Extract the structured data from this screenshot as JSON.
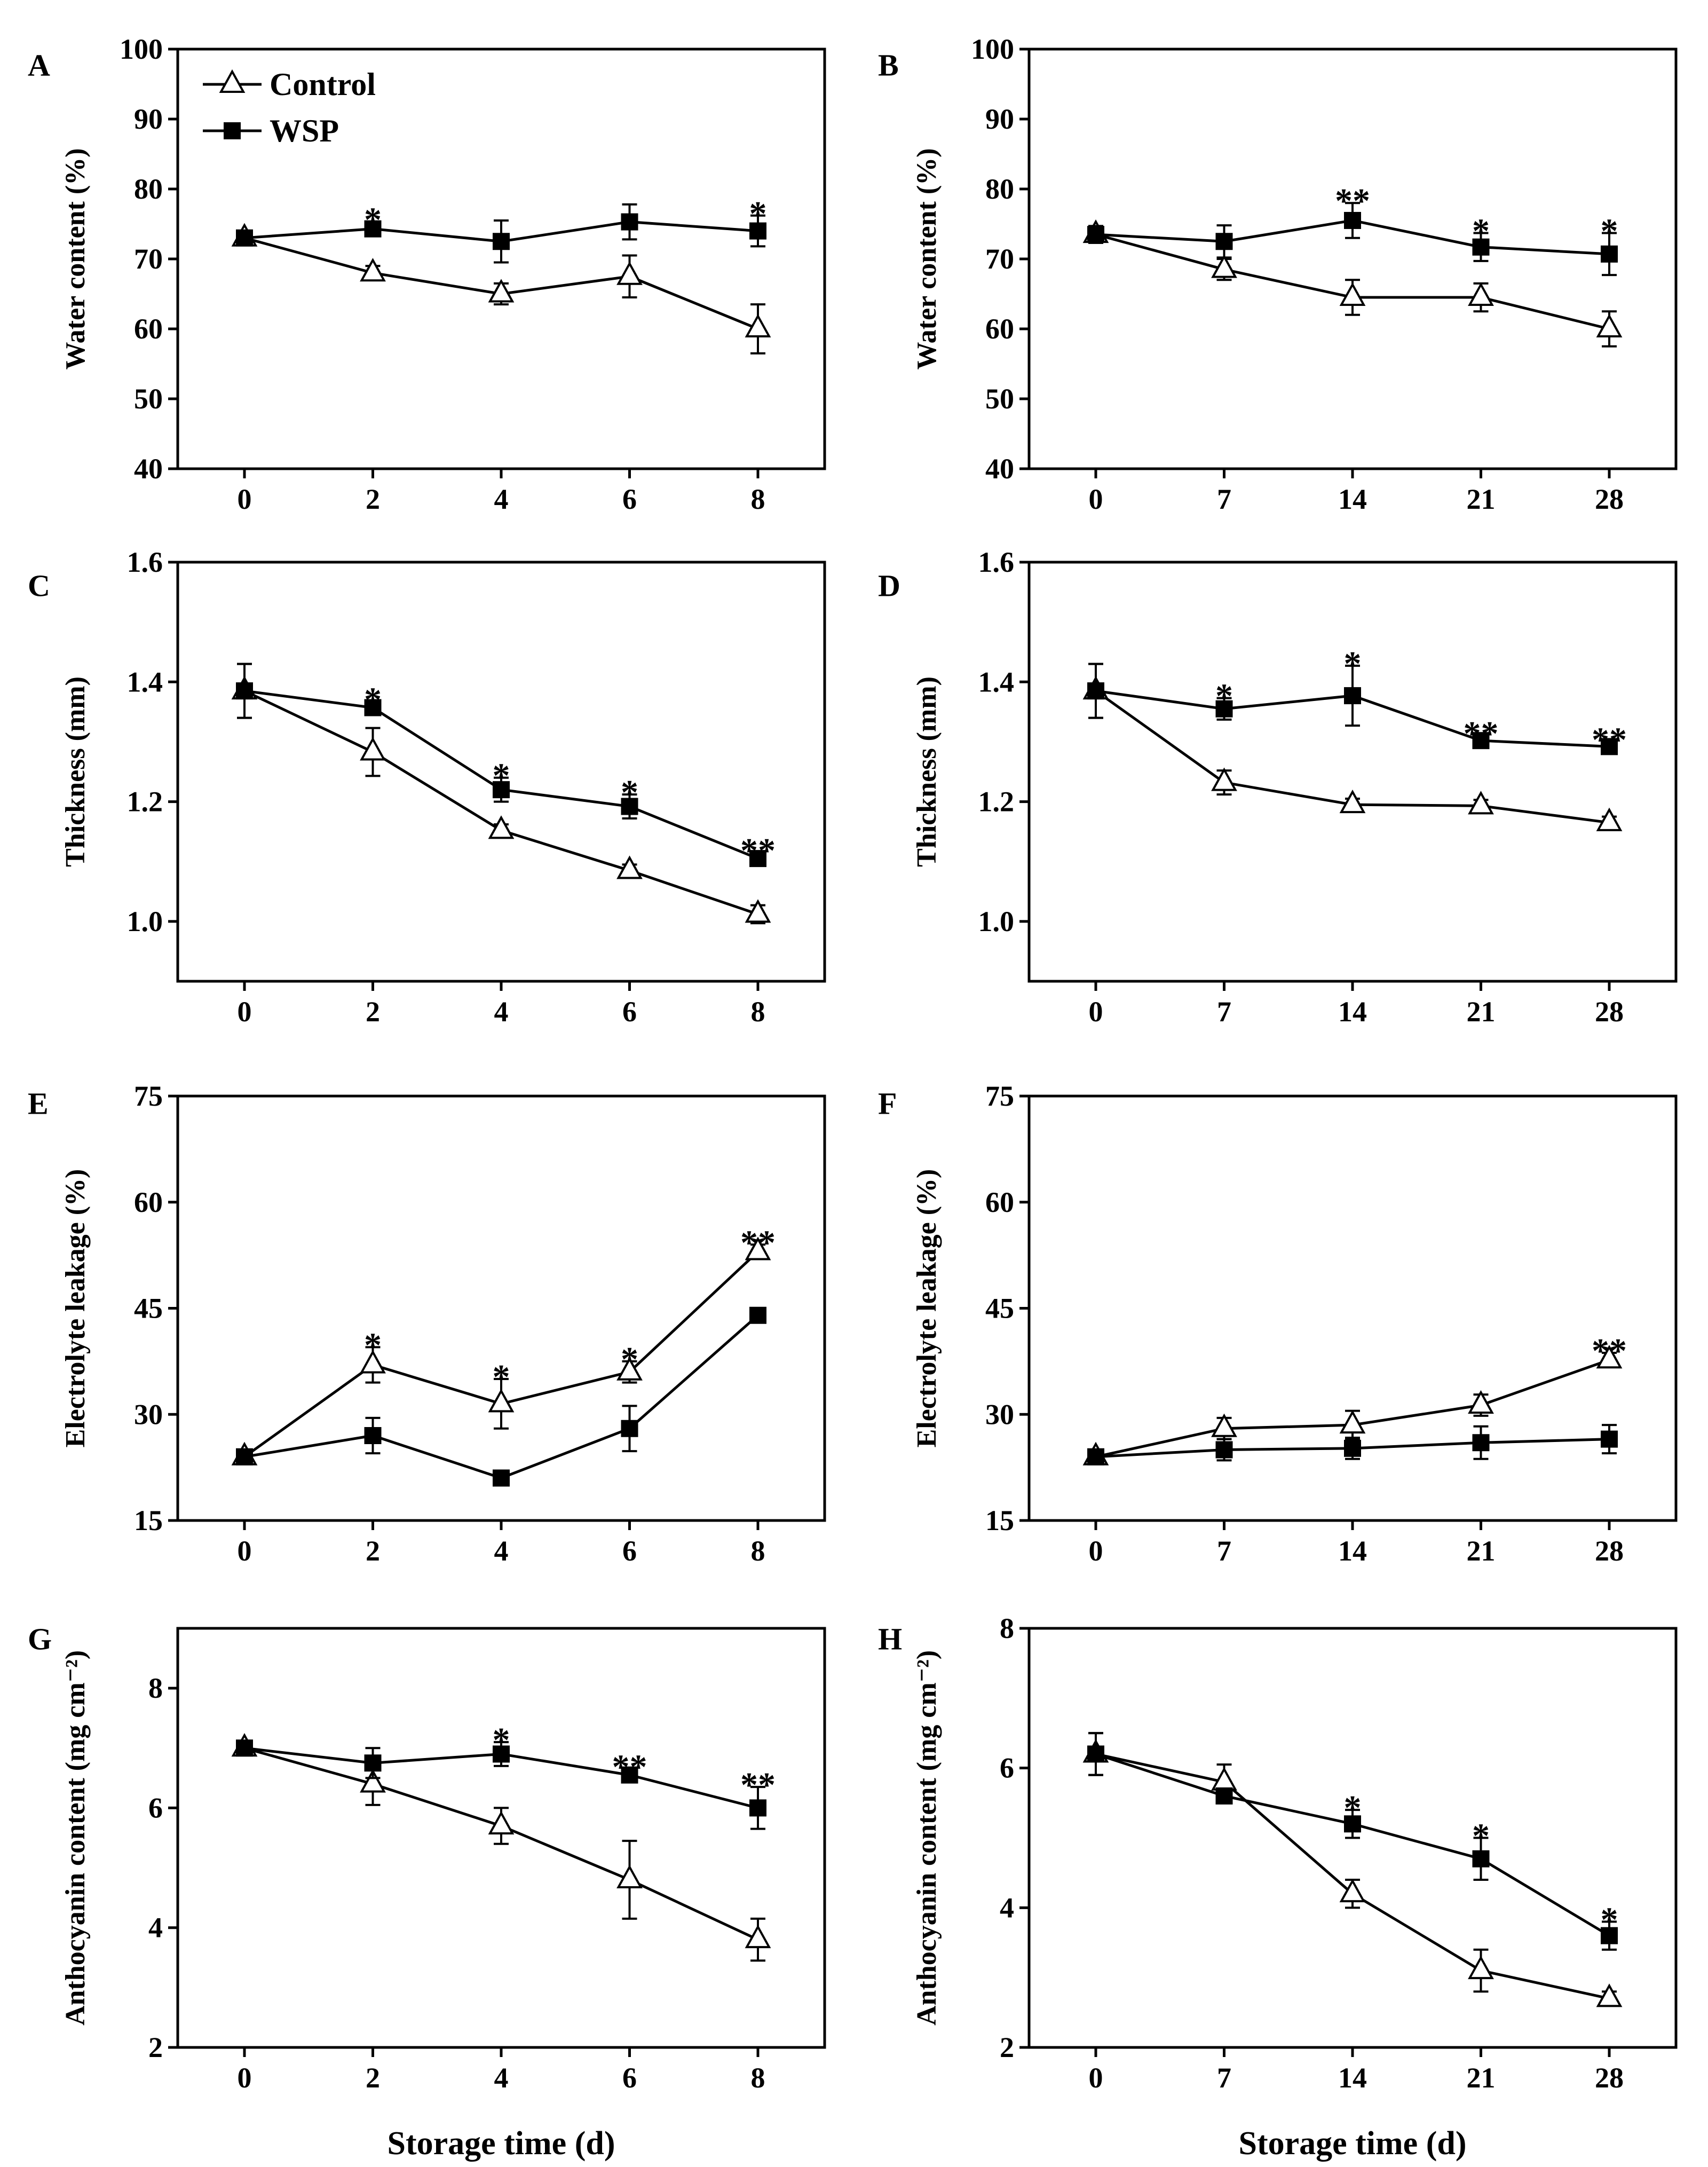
{
  "figure": {
    "xlabel": "Storage time (d)"
  },
  "legend": [
    {
      "name": "Control",
      "marker": "open-triangle"
    },
    {
      "name": "WSP",
      "marker": "filled-square"
    }
  ],
  "chart_data": [
    {
      "panel": "A",
      "type": "line",
      "ylabel": "Water content  (%)",
      "ylim": [
        40,
        100
      ],
      "yticks": [
        40,
        50,
        60,
        70,
        80,
        90,
        100
      ],
      "x": [
        0,
        2,
        4,
        6,
        8
      ],
      "series": [
        {
          "name": "Control",
          "values": [
            73,
            68,
            65,
            67.5,
            60
          ],
          "errors": [
            1,
            1,
            1.5,
            3,
            3.5
          ]
        },
        {
          "name": "WSP",
          "values": [
            73,
            74.3,
            72.5,
            75.3,
            74
          ],
          "errors": [
            1,
            1,
            3,
            2.5,
            2.2
          ]
        }
      ],
      "annotations": [
        {
          "x": 2,
          "text": "*"
        },
        {
          "x": 8,
          "text": "*"
        }
      ]
    },
    {
      "panel": "B",
      "type": "line",
      "ylabel": "Water content  (%)",
      "ylim": [
        40,
        100
      ],
      "yticks": [
        40,
        50,
        60,
        70,
        80,
        90,
        100
      ],
      "x": [
        0,
        7,
        14,
        21,
        28
      ],
      "series": [
        {
          "name": "Control",
          "values": [
            73.5,
            68.5,
            64.5,
            64.5,
            60
          ],
          "errors": [
            1.2,
            1.5,
            2.5,
            2,
            2.5
          ]
        },
        {
          "name": "WSP",
          "values": [
            73.5,
            72.5,
            75.5,
            71.7,
            70.7
          ],
          "errors": [
            1.2,
            2.3,
            2.5,
            2,
            3
          ]
        }
      ],
      "annotations": [
        {
          "x": 14,
          "text": "**"
        },
        {
          "x": 21,
          "text": "*"
        },
        {
          "x": 28,
          "text": "*"
        }
      ]
    },
    {
      "panel": "C",
      "type": "line",
      "ylabel": "Thickness (mm)",
      "ylim": [
        0.9,
        1.6
      ],
      "yticks": [
        1.0,
        1.2,
        1.4,
        1.6
      ],
      "x": [
        0,
        2,
        4,
        6,
        8
      ],
      "series": [
        {
          "name": "Control",
          "values": [
            1.385,
            1.283,
            1.152,
            1.085,
            1.012
          ],
          "errors": [
            0.045,
            0.04,
            0.01,
            0.01,
            0.015
          ]
        },
        {
          "name": "WSP",
          "values": [
            1.385,
            1.357,
            1.22,
            1.192,
            1.105
          ],
          "errors": [
            0.045,
            0.01,
            0.02,
            0.02,
            0.01
          ]
        }
      ],
      "annotations": [
        {
          "x": 2,
          "text": "*"
        },
        {
          "x": 4,
          "text": "*"
        },
        {
          "x": 6,
          "text": "*"
        },
        {
          "x": 8,
          "text": "**"
        }
      ]
    },
    {
      "panel": "D",
      "type": "line",
      "ylabel": "Thickness (mm)",
      "ylim": [
        0.9,
        1.6
      ],
      "yticks": [
        1.0,
        1.2,
        1.4,
        1.6
      ],
      "x": [
        0,
        7,
        14,
        21,
        28
      ],
      "series": [
        {
          "name": "Control",
          "values": [
            1.385,
            1.232,
            1.195,
            1.193,
            1.165
          ],
          "errors": [
            0.045,
            0.02,
            0.01,
            0.01,
            0.01
          ]
        },
        {
          "name": "WSP",
          "values": [
            1.385,
            1.355,
            1.377,
            1.302,
            1.292
          ],
          "errors": [
            0.045,
            0.018,
            0.05,
            0.008,
            0.008
          ]
        }
      ],
      "annotations": [
        {
          "x": 7,
          "text": "*"
        },
        {
          "x": 14,
          "text": "*"
        },
        {
          "x": 21,
          "text": "**"
        },
        {
          "x": 28,
          "text": "**"
        }
      ]
    },
    {
      "panel": "E",
      "type": "line",
      "ylabel": "Electrolyte leakage (%)",
      "ylim": [
        15,
        75
      ],
      "yticks": [
        15,
        30,
        45,
        60,
        75
      ],
      "x": [
        0,
        2,
        4,
        6,
        8
      ],
      "series": [
        {
          "name": "Control",
          "values": [
            24,
            37,
            31.5,
            36,
            53
          ],
          "errors": [
            1,
            2.5,
            3.5,
            1.5,
            1
          ]
        },
        {
          "name": "WSP",
          "values": [
            24,
            27,
            21,
            28,
            44
          ],
          "errors": [
            1,
            2.5,
            1,
            3.2,
            0.8
          ]
        }
      ],
      "annotations": [
        {
          "x": 2,
          "text": "*"
        },
        {
          "x": 4,
          "text": "*"
        },
        {
          "x": 6,
          "text": "*"
        },
        {
          "x": 8,
          "text": "**"
        }
      ]
    },
    {
      "panel": "F",
      "type": "line",
      "ylabel": "Electrolyte leakage (%)",
      "ylim": [
        15,
        75
      ],
      "yticks": [
        15,
        30,
        45,
        60,
        75
      ],
      "x": [
        0,
        7,
        14,
        21,
        28
      ],
      "series": [
        {
          "name": "Control",
          "values": [
            24,
            28,
            28.5,
            31.3,
            37.7
          ],
          "errors": [
            1,
            1.5,
            2,
            1.5,
            1
          ]
        },
        {
          "name": "WSP",
          "values": [
            24,
            25,
            25.2,
            26,
            26.5
          ],
          "errors": [
            1,
            1.5,
            1.5,
            2.3,
            2
          ]
        }
      ],
      "annotations": [
        {
          "x": 28,
          "text": "**"
        }
      ]
    },
    {
      "panel": "G",
      "type": "line",
      "ylabel": "Anthocyanin content (mg cm⁻²)",
      "ylim": [
        2,
        9
      ],
      "yticks": [
        2,
        4,
        6,
        8
      ],
      "x": [
        0,
        2,
        4,
        6,
        8
      ],
      "series": [
        {
          "name": "Control",
          "values": [
            7.0,
            6.4,
            5.7,
            4.8,
            3.8
          ],
          "errors": [
            0.1,
            0.35,
            0.3,
            0.65,
            0.35
          ]
        },
        {
          "name": "WSP",
          "values": [
            7.0,
            6.75,
            6.9,
            6.55,
            6.0
          ],
          "errors": [
            0.1,
            0.25,
            0.2,
            0.1,
            0.35
          ]
        }
      ],
      "annotations": [
        {
          "x": 4,
          "text": "*"
        },
        {
          "x": 6,
          "text": "**"
        },
        {
          "x": 8,
          "text": "**"
        }
      ]
    },
    {
      "panel": "H",
      "type": "line",
      "ylabel": "Anthocyanin content (mg cm⁻²)",
      "ylim": [
        2,
        8
      ],
      "yticks": [
        2,
        4,
        6,
        8
      ],
      "x": [
        0,
        7,
        14,
        21,
        28
      ],
      "series": [
        {
          "name": "Control",
          "values": [
            6.2,
            5.8,
            4.2,
            3.1,
            2.7
          ],
          "errors": [
            0.3,
            0.25,
            0.2,
            0.3,
            0.1
          ]
        },
        {
          "name": "WSP",
          "values": [
            6.2,
            5.6,
            5.2,
            4.7,
            3.6
          ],
          "errors": [
            0.3,
            0.1,
            0.2,
            0.3,
            0.2
          ]
        }
      ],
      "annotations": [
        {
          "x": 14,
          "text": "*"
        },
        {
          "x": 21,
          "text": "*"
        },
        {
          "x": 28,
          "text": "*"
        }
      ]
    }
  ]
}
